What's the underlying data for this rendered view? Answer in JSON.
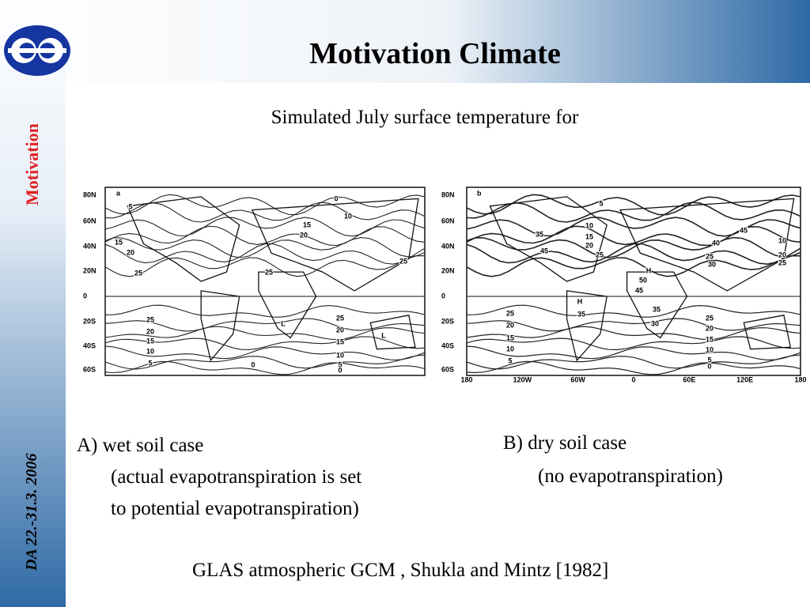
{
  "header": {
    "title": "Motivation Climate",
    "subtitle": "Simulated July surface temperature for"
  },
  "sidebar": {
    "section": "Motivation",
    "date": "DA 22.-31.3. 2006"
  },
  "maps": [
    {
      "panel": "a",
      "lat_labels": [
        "80N",
        "60N",
        "40N",
        "20N",
        "0",
        "20S",
        "40S",
        "60S"
      ],
      "contour_labels": [
        "5",
        "0",
        "10",
        "15",
        "20",
        "25",
        "15",
        "20",
        "25",
        "25",
        "L",
        "25",
        "20",
        "15",
        "10",
        "5",
        "0",
        "25",
        "20",
        "15",
        "10",
        "5",
        "0",
        "L"
      ]
    },
    {
      "panel": "b",
      "lat_labels": [
        "80N",
        "60N",
        "40N",
        "20N",
        "0",
        "20S",
        "40S",
        "60S"
      ],
      "lon_labels": [
        "180",
        "120W",
        "60W",
        "0",
        "60E",
        "120E",
        "180"
      ],
      "contour_labels": [
        "5",
        "10",
        "15",
        "20",
        "25",
        "35",
        "45",
        "H",
        "35",
        "H",
        "50",
        "45",
        "35",
        "30",
        "45",
        "40",
        "25",
        "30",
        "20",
        "25",
        "10",
        "25",
        "20",
        "15",
        "10",
        "5",
        "25",
        "20",
        "15",
        "10",
        "5",
        "0"
      ]
    }
  ],
  "captions": {
    "a": [
      "A) wet soil case",
      "(actual evapotranspiration is set",
      "to potential evapotranspiration)"
    ],
    "b": [
      "B) dry soil case",
      "(no evapotranspiration)"
    ]
  },
  "citation": "GLAS atmospheric GCM , Shukla and Mintz [1982]"
}
